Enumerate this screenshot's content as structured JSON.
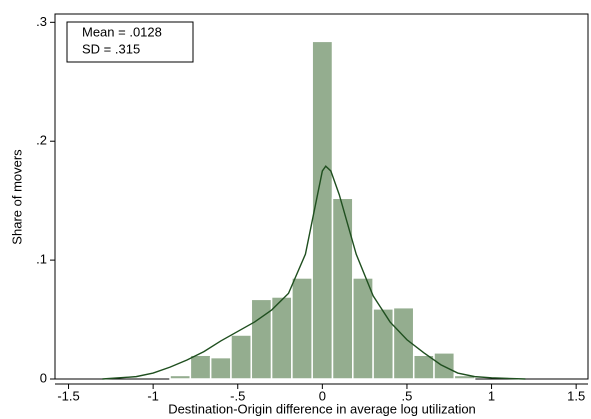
{
  "chart_data": {
    "type": "histogram",
    "xlabel": "Destination-Origin difference in average log utilization",
    "ylabel": "Share of movers",
    "annotations": [
      "Mean = .0128",
      "SD = .315"
    ],
    "bins": [
      -0.9,
      -0.78,
      -0.66,
      -0.54,
      -0.42,
      -0.3,
      -0.18,
      -0.06,
      0.06,
      0.18,
      0.3,
      0.42,
      0.54,
      0.66,
      0.78,
      0.9
    ],
    "values": [
      0.003,
      0.02,
      0.018,
      0.037,
      0.067,
      0.069,
      0.085,
      0.284,
      0.152,
      0.085,
      0.059,
      0.06,
      0.02,
      0.022,
      0.003
    ],
    "color": "#94ad8f",
    "density": {
      "color": "#1f4f1f",
      "x": [
        -1.3,
        -1.1,
        -1.0,
        -0.9,
        -0.8,
        -0.7,
        -0.6,
        -0.5,
        -0.4,
        -0.3,
        -0.2,
        -0.1,
        -0.05,
        0,
        0.02,
        0.05,
        0.1,
        0.2,
        0.3,
        0.4,
        0.5,
        0.6,
        0.7,
        0.8,
        0.9,
        1.0,
        1.2
      ],
      "values": [
        0,
        0.002,
        0.005,
        0.01,
        0.016,
        0.023,
        0.032,
        0.04,
        0.048,
        0.058,
        0.072,
        0.105,
        0.14,
        0.175,
        0.179,
        0.175,
        0.155,
        0.105,
        0.07,
        0.048,
        0.033,
        0.022,
        0.012,
        0.005,
        0.002,
        0.001,
        0
      ]
    },
    "xlim": [
      -1.58,
      1.57
    ],
    "xticks": [
      -1.5,
      -1,
      {
        "value": -0.5,
        "label": "-.5"
      },
      0,
      {
        "value": 0.5,
        "label": ".5"
      },
      1,
      1.5
    ],
    "ylim": [
      0,
      0.307
    ],
    "yticks": [
      0,
      {
        "value": 0.1,
        "label": ".1"
      },
      {
        "value": 0.2,
        "label": ".2"
      },
      {
        "value": 0.3,
        "label": ".3"
      }
    ]
  }
}
